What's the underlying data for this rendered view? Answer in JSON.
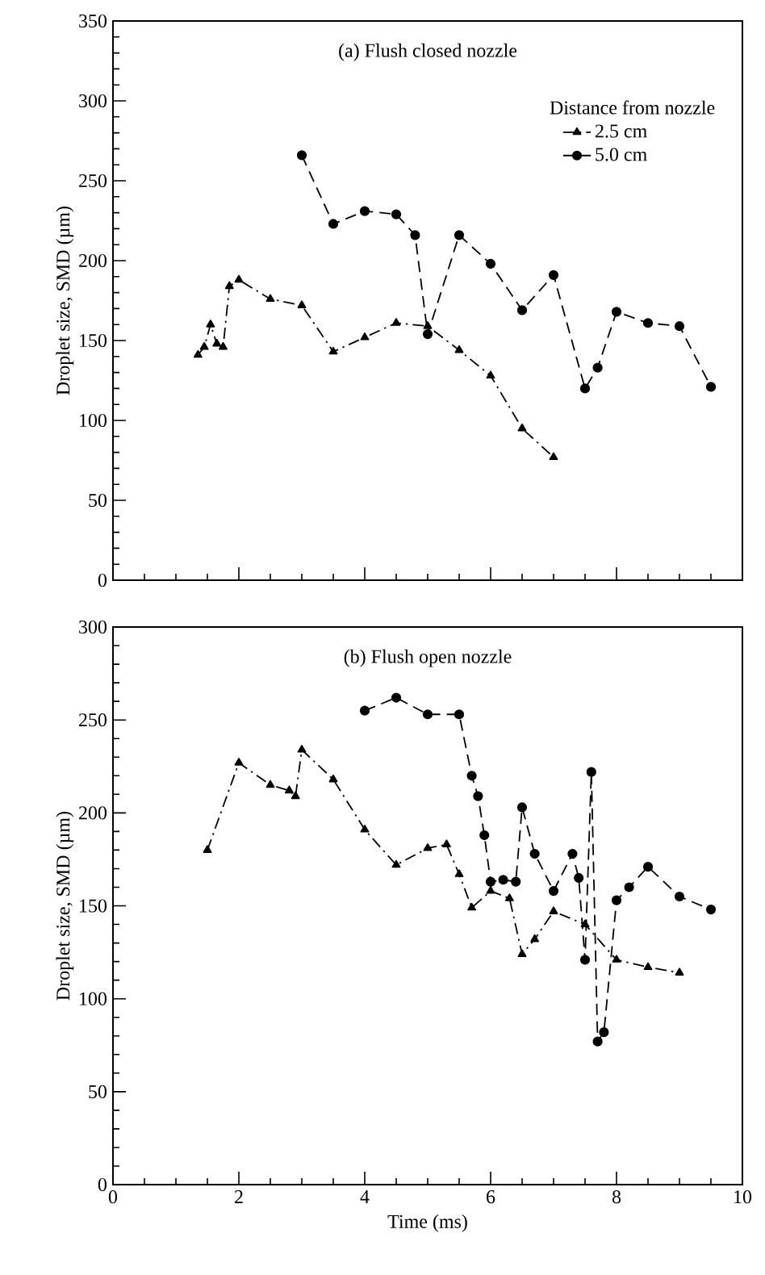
{
  "chart_data": [
    {
      "type": "line",
      "title": "(a)  Flush closed nozzle",
      "ylabel": "Droplet size, SMD (µm)",
      "legend_title": "Distance from nozzle",
      "legend": "top right",
      "tick_labels": "y",
      "xlim": [
        0,
        10
      ],
      "ylim": [
        0,
        350
      ],
      "xticks": [
        0,
        2,
        4,
        6,
        8,
        10
      ],
      "yticks": [
        0,
        50,
        100,
        150,
        200,
        250,
        300,
        350
      ],
      "grid": false,
      "series": [
        {
          "name": "2.5 cm",
          "color": "#000000",
          "marker": "triangle",
          "line_style": "dashdot",
          "x": [
            1.35,
            1.45,
            1.55,
            1.65,
            1.75,
            1.85,
            2.0,
            2.5,
            3.0,
            3.5,
            4.0,
            4.5,
            5.0,
            5.5,
            6.0,
            6.5,
            7.0
          ],
          "values": [
            141,
            146,
            160,
            148,
            146,
            184,
            188,
            176,
            172,
            143,
            152,
            161,
            159,
            144,
            128,
            95,
            77
          ]
        },
        {
          "name": "5.0 cm",
          "color": "#000000",
          "marker": "circle",
          "line_style": "dashed",
          "x": [
            3.0,
            3.5,
            4.0,
            4.5,
            4.8,
            5.0,
            5.5,
            6.0,
            6.5,
            7.0,
            7.5,
            7.7,
            8.0,
            8.5,
            9.0,
            9.5
          ],
          "values": [
            266,
            223,
            231,
            229,
            216,
            154,
            216,
            198,
            169,
            191,
            120,
            133,
            168,
            161,
            159,
            121
          ]
        }
      ]
    },
    {
      "type": "line",
      "title": "(b)  Flush open nozzle",
      "xlabel": "Time (ms)",
      "ylabel": "Droplet size, SMD (µm)",
      "xlim": [
        0,
        10
      ],
      "ylim": [
        0,
        300
      ],
      "xticks": [
        0,
        2,
        4,
        6,
        8,
        10
      ],
      "yticks": [
        0,
        50,
        100,
        150,
        200,
        250,
        300
      ],
      "grid": false,
      "series": [
        {
          "color": "#000000",
          "marker": "triangle",
          "line_style": "dashdot",
          "x": [
            1.5,
            2.0,
            2.5,
            2.8,
            2.9,
            3.0,
            3.5,
            4.0,
            4.5,
            5.0,
            5.3,
            5.5,
            5.7,
            6.0,
            6.3,
            6.5,
            6.7,
            7.0,
            7.5,
            8.0,
            8.5,
            9.0
          ],
          "values": [
            180,
            227,
            215,
            212,
            209,
            234,
            218,
            191,
            172,
            181,
            183,
            167,
            149,
            158,
            154,
            124,
            132,
            147,
            140,
            121,
            117,
            114
          ]
        },
        {
          "color": "#000000",
          "marker": "circle",
          "line_style": "dashed",
          "x": [
            4.0,
            4.5,
            5.0,
            5.5,
            5.7,
            5.8,
            5.9,
            6.0,
            6.2,
            6.4,
            6.5,
            6.7,
            7.0,
            7.3,
            7.4,
            7.5,
            7.6,
            7.7,
            7.8,
            8.0,
            8.2,
            8.5,
            9.0,
            9.5
          ],
          "values": [
            255,
            262,
            253,
            253,
            220,
            209,
            188,
            163,
            164,
            163,
            203,
            178,
            158,
            178,
            165,
            121,
            222,
            77,
            82,
            153,
            160,
            171,
            155,
            148
          ]
        }
      ]
    }
  ]
}
